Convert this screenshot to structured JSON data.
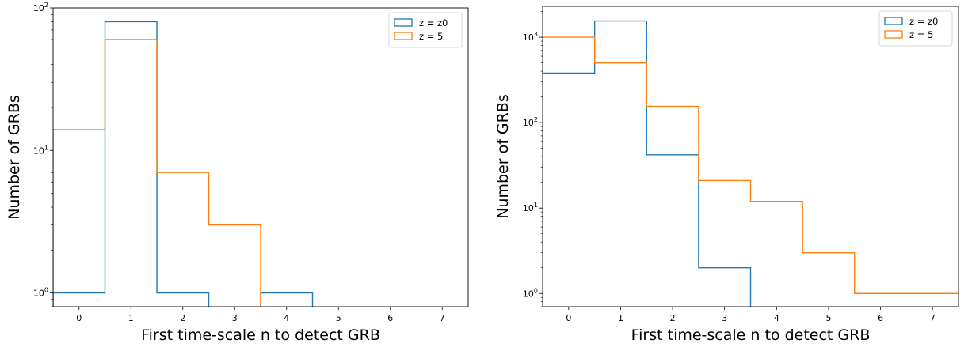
{
  "chart_data": [
    {
      "type": "histogram-step",
      "xlabel": "First time-scale n to detect GRB",
      "ylabel": "Number of GRBs",
      "yscale": "log",
      "xlim": [
        -0.5,
        7.5
      ],
      "ylim": [
        0.8,
        100
      ],
      "xticks": [
        0,
        1,
        2,
        3,
        4,
        5,
        6,
        7
      ],
      "yticks": [
        1,
        10,
        100
      ],
      "ytick_labels": [
        {
          "base": "10",
          "exp": "0"
        },
        {
          "base": "10",
          "exp": "1"
        },
        {
          "base": "10",
          "exp": "2"
        }
      ],
      "bin_edges": [
        -0.5,
        0.5,
        1.5,
        2.5,
        3.5,
        4.5,
        5.5,
        6.5,
        7.5
      ],
      "legend_position": "top-right",
      "series": [
        {
          "name": "z = z0",
          "color": "#1f77b4",
          "counts": [
            1,
            80,
            1,
            0,
            1,
            0,
            0,
            0
          ]
        },
        {
          "name": "z = 5",
          "color": "#ff7f0e",
          "counts": [
            14,
            60,
            7,
            3,
            0,
            0,
            0,
            0
          ]
        }
      ]
    },
    {
      "type": "histogram-step",
      "xlabel": "First time-scale n to detect GRB",
      "ylabel": "Number of GRBs",
      "yscale": "log",
      "xlim": [
        -0.5,
        7.5
      ],
      "ylim": [
        0.7,
        2300
      ],
      "xticks": [
        0,
        1,
        2,
        3,
        4,
        5,
        6,
        7
      ],
      "yticks": [
        1,
        10,
        100,
        1000
      ],
      "ytick_labels": [
        {
          "base": "10",
          "exp": "0"
        },
        {
          "base": "10",
          "exp": "1"
        },
        {
          "base": "10",
          "exp": "2"
        },
        {
          "base": "10",
          "exp": "3"
        }
      ],
      "bin_edges": [
        -0.5,
        0.5,
        1.5,
        2.5,
        3.5,
        4.5,
        5.5,
        6.5,
        7.5
      ],
      "legend_position": "top-right",
      "series": [
        {
          "name": "z = z0",
          "color": "#1f77b4",
          "counts": [
            380,
            1550,
            42,
            2,
            0,
            0,
            0,
            0
          ]
        },
        {
          "name": "z = 5",
          "color": "#ff7f0e",
          "counts": [
            1000,
            500,
            155,
            21,
            12,
            3,
            1,
            1
          ]
        }
      ]
    }
  ]
}
